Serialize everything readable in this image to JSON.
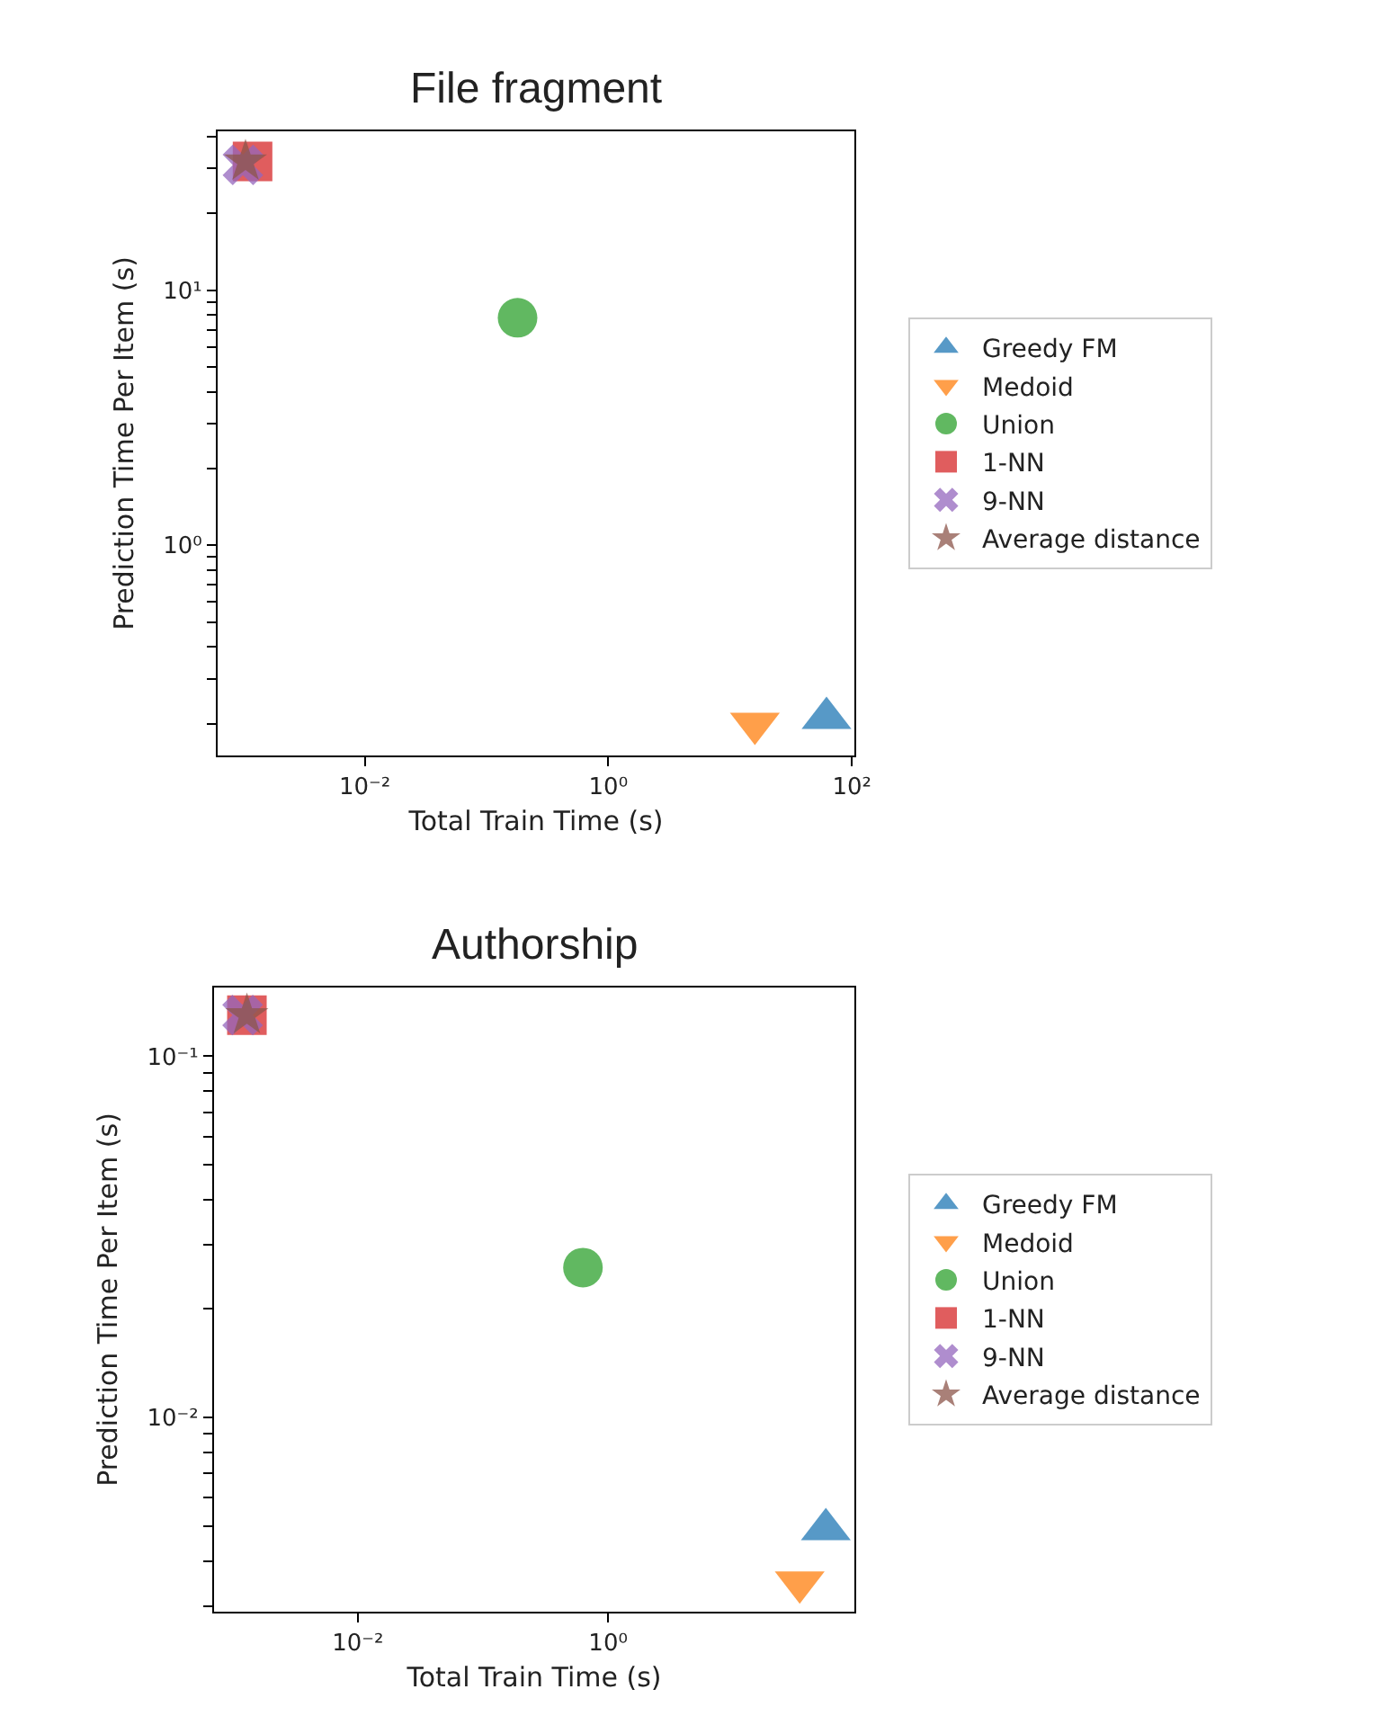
{
  "chart_data": [
    {
      "type": "scatter",
      "title": "File fragment",
      "xlabel": "Total Train Time (s)",
      "ylabel": "Prediction Time Per Item (s)",
      "log": "xy",
      "legend": "right",
      "xlim": [
        0.00062,
        105
      ],
      "ylim": [
        0.15,
        42
      ],
      "xticks": [
        {
          "value": 0.01,
          "label": "10⁻²"
        },
        {
          "value": 1,
          "label": "10⁰"
        },
        {
          "value": 100,
          "label": "10²"
        }
      ],
      "yticks": [
        {
          "value": 0.2,
          "label": null
        },
        {
          "value": 0.3,
          "label": null
        },
        {
          "value": 0.4,
          "label": null
        },
        {
          "value": 0.5,
          "label": null
        },
        {
          "value": 0.6,
          "label": null
        },
        {
          "value": 0.7,
          "label": null
        },
        {
          "value": 0.8,
          "label": null
        },
        {
          "value": 0.9,
          "label": null
        },
        {
          "value": 1,
          "label": "10⁰"
        },
        {
          "value": 2,
          "label": null
        },
        {
          "value": 3,
          "label": null
        },
        {
          "value": 4,
          "label": null
        },
        {
          "value": 5,
          "label": null
        },
        {
          "value": 6,
          "label": null
        },
        {
          "value": 7,
          "label": null
        },
        {
          "value": 8,
          "label": null
        },
        {
          "value": 9,
          "label": null
        },
        {
          "value": 10,
          "label": "10¹"
        },
        {
          "value": 20,
          "label": null
        },
        {
          "value": 30,
          "label": null
        },
        {
          "value": 40,
          "label": null
        }
      ],
      "series": [
        {
          "name": "Greedy FM",
          "color": "#1f77b4",
          "marker": "triangle",
          "x": [
            62
          ],
          "values": [
            0.21
          ]
        },
        {
          "name": "Medoid",
          "color": "#ff7f0e",
          "marker": "triangle-down",
          "x": [
            16
          ],
          "values": [
            0.2
          ]
        },
        {
          "name": "Union",
          "color": "#2ca02c",
          "marker": "circle",
          "x": [
            0.18
          ],
          "values": [
            7.8
          ]
        },
        {
          "name": "1-NN",
          "color": "#d62728",
          "marker": "square",
          "x": [
            0.0012
          ],
          "values": [
            32
          ]
        },
        {
          "name": "9-NN",
          "color": "#9467bd",
          "marker": "cross",
          "x": [
            0.001
          ],
          "values": [
            31
          ]
        },
        {
          "name": "Average distance",
          "color": "#8c564b",
          "marker": "star",
          "x": [
            0.00105
          ],
          "values": [
            32
          ]
        }
      ]
    },
    {
      "type": "scatter",
      "title": "Authorship",
      "xlabel": "Total Train Time (s)",
      "ylabel": "Prediction Time Per Item (s)",
      "log": "xy",
      "legend": "right",
      "xlim": [
        0.00071,
        93
      ],
      "ylim": [
        0.0029,
        0.155
      ],
      "xticks": [
        {
          "value": 0.01,
          "label": "10⁻²"
        },
        {
          "value": 1,
          "label": "10⁰"
        }
      ],
      "yticks": [
        {
          "value": 0.003,
          "label": null
        },
        {
          "value": 0.004,
          "label": null
        },
        {
          "value": 0.005,
          "label": null
        },
        {
          "value": 0.006,
          "label": null
        },
        {
          "value": 0.007,
          "label": null
        },
        {
          "value": 0.008,
          "label": null
        },
        {
          "value": 0.009,
          "label": null
        },
        {
          "value": 0.01,
          "label": "10⁻²"
        },
        {
          "value": 0.02,
          "label": null
        },
        {
          "value": 0.03,
          "label": null
        },
        {
          "value": 0.04,
          "label": null
        },
        {
          "value": 0.05,
          "label": null
        },
        {
          "value": 0.06,
          "label": null
        },
        {
          "value": 0.07,
          "label": null
        },
        {
          "value": 0.08,
          "label": null
        },
        {
          "value": 0.09,
          "label": null
        },
        {
          "value": 0.1,
          "label": "10⁻¹"
        }
      ],
      "series": [
        {
          "name": "Greedy FM",
          "color": "#1f77b4",
          "marker": "triangle",
          "x": [
            55
          ],
          "values": [
            0.0049
          ]
        },
        {
          "name": "Medoid",
          "color": "#ff7f0e",
          "marker": "triangle-down",
          "x": [
            34
          ],
          "values": [
            0.0035
          ]
        },
        {
          "name": "Union",
          "color": "#2ca02c",
          "marker": "circle",
          "x": [
            0.63
          ],
          "values": [
            0.026
          ]
        },
        {
          "name": "1-NN",
          "color": "#d62728",
          "marker": "square",
          "x": [
            0.0013
          ],
          "values": [
            0.13
          ]
        },
        {
          "name": "9-NN",
          "color": "#9467bd",
          "marker": "cross",
          "x": [
            0.0012
          ],
          "values": [
            0.13
          ]
        },
        {
          "name": "Average distance",
          "color": "#8c564b",
          "marker": "star",
          "x": [
            0.0013
          ],
          "values": [
            0.13
          ]
        }
      ]
    }
  ]
}
